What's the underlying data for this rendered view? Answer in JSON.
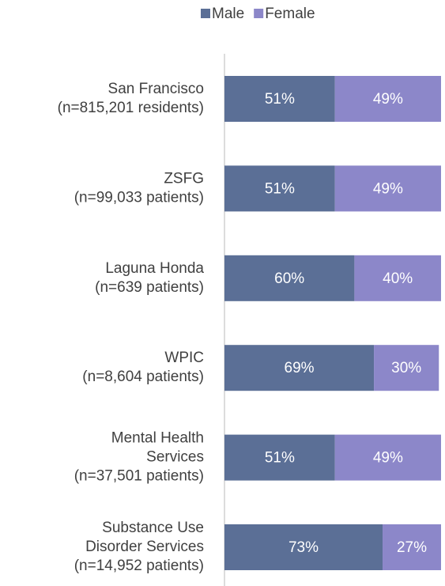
{
  "chart_data": {
    "type": "stacked-barh",
    "categories": [
      [
        "San Francisco",
        "(n=815,201 residents)"
      ],
      [
        "ZSFG",
        "(n=99,033 patients)"
      ],
      [
        "Laguna Honda",
        "(n=639 patients)"
      ],
      [
        "WPIC",
        "(n=8,604 patients)"
      ],
      [
        "Mental Health",
        "Services",
        "(n=37,501 patients)"
      ],
      [
        "Substance Use",
        "Disorder Services",
        "(n=14,952 patients)"
      ]
    ],
    "series": [
      {
        "name": "Male",
        "color": "#5b6f96",
        "values": [
          51,
          51,
          60,
          69,
          51,
          73
        ],
        "value_labels": [
          "51%",
          "51%",
          "60%",
          "69%",
          "51%",
          "73%"
        ]
      },
      {
        "name": "Female",
        "color": "#8c87c9",
        "values": [
          49,
          49,
          40,
          30,
          49,
          27
        ],
        "value_labels": [
          "49%",
          "49%",
          "40%",
          "30%",
          "49%",
          "27%"
        ]
      }
    ],
    "xlim": [
      0,
      100
    ],
    "legend": "top"
  }
}
